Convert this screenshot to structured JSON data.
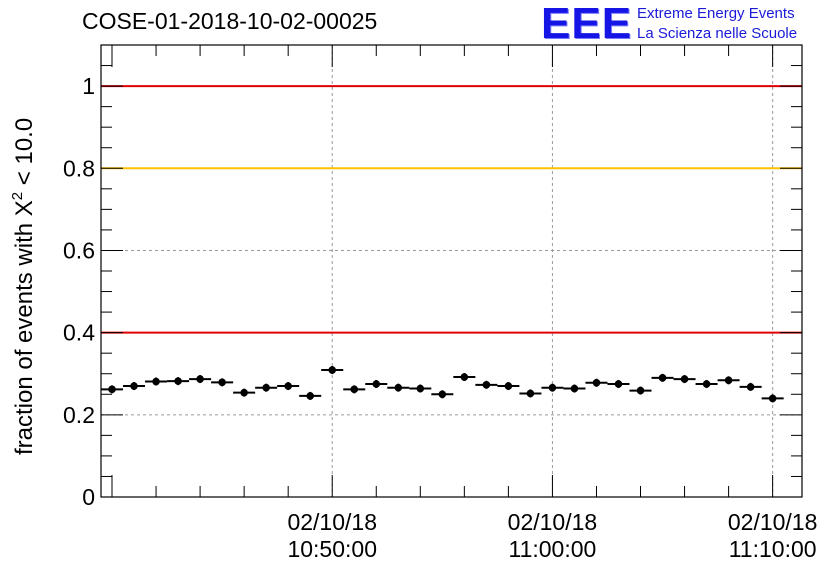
{
  "title": "COSE-01-2018-10-02-00025",
  "logo": {
    "mark": "EEE",
    "line1": "Extreme Energy Events",
    "line2": "La Scienza nelle Scuole"
  },
  "chart_data": {
    "type": "scatter",
    "ylabel": "fraction of events with",
    "ylabel_symbol": "X",
    "ylabel_sup": "2",
    "ylabel_tail": "< 10.0",
    "ylim": [
      0,
      1.1
    ],
    "yticks": [
      0,
      0.2,
      0.4,
      0.6,
      0.8,
      1
    ],
    "ytick_labels": [
      "0",
      "0.2",
      "0.4",
      "0.6",
      "0.8",
      "1"
    ],
    "xlim": [
      "10:39:30",
      "11:11:20"
    ],
    "xticks": [
      {
        "date": "02/10/18",
        "time": "10:50:00"
      },
      {
        "date": "02/10/18",
        "time": "11:00:00"
      },
      {
        "date": "02/10/18",
        "time": "11:10:00"
      }
    ],
    "grid": true,
    "reference_lines": [
      {
        "y": 1.0,
        "color": "#e00000"
      },
      {
        "y": 0.8,
        "color": "#ffc000"
      },
      {
        "y": 0.4,
        "color": "#e00000"
      }
    ],
    "bin_width_seconds": 60,
    "series": [
      {
        "marker_color": "#000000",
        "points": [
          {
            "x": "10:40:00",
            "y": 0.262
          },
          {
            "x": "10:41:00",
            "y": 0.27
          },
          {
            "x": "10:42:00",
            "y": 0.281
          },
          {
            "x": "10:43:00",
            "y": 0.282
          },
          {
            "x": "10:44:00",
            "y": 0.287
          },
          {
            "x": "10:45:00",
            "y": 0.279
          },
          {
            "x": "10:46:00",
            "y": 0.254
          },
          {
            "x": "10:47:00",
            "y": 0.266
          },
          {
            "x": "10:48:00",
            "y": 0.27
          },
          {
            "x": "10:49:00",
            "y": 0.246
          },
          {
            "x": "10:50:00",
            "y": 0.309
          },
          {
            "x": "10:51:00",
            "y": 0.262
          },
          {
            "x": "10:52:00",
            "y": 0.275
          },
          {
            "x": "10:53:00",
            "y": 0.266
          },
          {
            "x": "10:54:00",
            "y": 0.264
          },
          {
            "x": "10:55:00",
            "y": 0.25
          },
          {
            "x": "10:56:00",
            "y": 0.292
          },
          {
            "x": "10:57:00",
            "y": 0.273
          },
          {
            "x": "10:58:00",
            "y": 0.27
          },
          {
            "x": "10:59:00",
            "y": 0.252
          },
          {
            "x": "11:00:00",
            "y": 0.266
          },
          {
            "x": "11:01:00",
            "y": 0.264
          },
          {
            "x": "11:02:00",
            "y": 0.278
          },
          {
            "x": "11:03:00",
            "y": 0.275
          },
          {
            "x": "11:04:00",
            "y": 0.259
          },
          {
            "x": "11:05:00",
            "y": 0.29
          },
          {
            "x": "11:06:00",
            "y": 0.287
          },
          {
            "x": "11:07:00",
            "y": 0.275
          },
          {
            "x": "11:08:00",
            "y": 0.284
          },
          {
            "x": "11:09:00",
            "y": 0.268
          },
          {
            "x": "11:10:00",
            "y": 0.24
          }
        ]
      }
    ]
  }
}
